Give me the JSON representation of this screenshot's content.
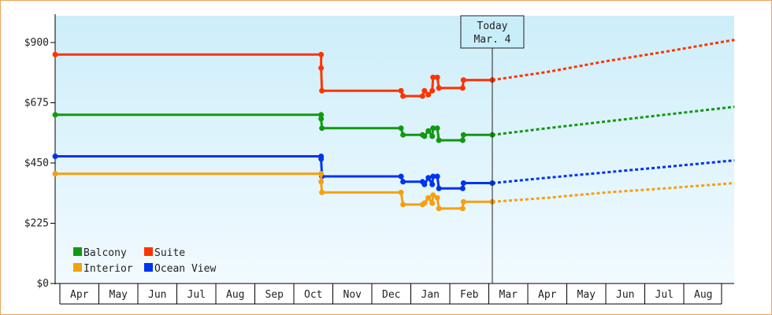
{
  "chart_data": {
    "type": "line",
    "ylim": [
      0,
      1000
    ],
    "y_ticks": [
      {
        "value": 0,
        "label": "$0"
      },
      {
        "value": 225,
        "label": "$225"
      },
      {
        "value": 450,
        "label": "$450"
      },
      {
        "value": 675,
        "label": "$675"
      },
      {
        "value": 900,
        "label": "$900"
      }
    ],
    "months": [
      "Apr",
      "May",
      "Jun",
      "Jul",
      "Aug",
      "Sep",
      "Oct",
      "Nov",
      "Dec",
      "Jan",
      "Feb",
      "Mar",
      "Apr",
      "May",
      "Jun",
      "Jul",
      "Aug"
    ],
    "today_label_line1": "Today",
    "today_label_line2": "Mar. 4",
    "today_x": 11.09,
    "x_max": 17.3,
    "legend_position": "bottom-left",
    "series": [
      {
        "name": "Suite",
        "color": "#ff3300",
        "history": [
          [
            -0.12,
            855
          ],
          [
            6.7,
            855
          ],
          [
            6.7,
            805
          ],
          [
            6.72,
            720
          ],
          [
            8.75,
            720
          ],
          [
            8.8,
            700
          ],
          [
            9.3,
            700
          ],
          [
            9.35,
            720
          ],
          [
            9.45,
            705
          ],
          [
            9.55,
            720
          ],
          [
            9.57,
            770
          ],
          [
            9.68,
            770
          ],
          [
            9.72,
            730
          ],
          [
            10.33,
            730
          ],
          [
            10.35,
            760
          ],
          [
            11.09,
            760
          ]
        ],
        "forecast": [
          [
            11.09,
            760
          ],
          [
            12.5,
            790
          ],
          [
            14,
            830
          ],
          [
            15.5,
            865
          ],
          [
            17.3,
            910
          ]
        ]
      },
      {
        "name": "Balcony",
        "color": "#119911",
        "history": [
          [
            -0.12,
            630
          ],
          [
            6.7,
            630
          ],
          [
            6.7,
            615
          ],
          [
            6.72,
            580
          ],
          [
            8.75,
            580
          ],
          [
            8.8,
            555
          ],
          [
            9.3,
            555
          ],
          [
            9.35,
            550
          ],
          [
            9.45,
            570
          ],
          [
            9.55,
            550
          ],
          [
            9.57,
            580
          ],
          [
            9.68,
            580
          ],
          [
            9.72,
            535
          ],
          [
            10.33,
            535
          ],
          [
            10.35,
            555
          ],
          [
            11.09,
            555
          ]
        ],
        "forecast": [
          [
            11.09,
            555
          ],
          [
            12.5,
            580
          ],
          [
            14,
            605
          ],
          [
            15.5,
            630
          ],
          [
            17.3,
            660
          ]
        ]
      },
      {
        "name": "Ocean View",
        "color": "#0033ee",
        "history": [
          [
            -0.12,
            475
          ],
          [
            6.7,
            475
          ],
          [
            6.7,
            465
          ],
          [
            6.72,
            400
          ],
          [
            8.75,
            400
          ],
          [
            8.8,
            380
          ],
          [
            9.3,
            380
          ],
          [
            9.35,
            370
          ],
          [
            9.45,
            395
          ],
          [
            9.55,
            370
          ],
          [
            9.57,
            400
          ],
          [
            9.68,
            400
          ],
          [
            9.72,
            355
          ],
          [
            10.33,
            355
          ],
          [
            10.35,
            375
          ],
          [
            11.09,
            375
          ]
        ],
        "forecast": [
          [
            11.09,
            375
          ],
          [
            12.5,
            395
          ],
          [
            14,
            415
          ],
          [
            15.5,
            435
          ],
          [
            17.3,
            460
          ]
        ]
      },
      {
        "name": "Interior",
        "color": "#f5a011",
        "history": [
          [
            -0.12,
            410
          ],
          [
            6.7,
            410
          ],
          [
            6.7,
            380
          ],
          [
            6.72,
            340
          ],
          [
            8.75,
            340
          ],
          [
            8.8,
            295
          ],
          [
            9.3,
            295
          ],
          [
            9.35,
            300
          ],
          [
            9.45,
            320
          ],
          [
            9.55,
            300
          ],
          [
            9.57,
            330
          ],
          [
            9.68,
            320
          ],
          [
            9.72,
            280
          ],
          [
            10.33,
            280
          ],
          [
            10.35,
            305
          ],
          [
            11.09,
            305
          ]
        ],
        "forecast": [
          [
            11.09,
            305
          ],
          [
            12.5,
            320
          ],
          [
            14,
            340
          ],
          [
            15.5,
            355
          ],
          [
            17.3,
            375
          ]
        ]
      }
    ],
    "legend": [
      {
        "name": "Balcony",
        "color": "#119911"
      },
      {
        "name": "Suite",
        "color": "#ff3300"
      },
      {
        "name": "Interior",
        "color": "#f5a011"
      },
      {
        "name": "Ocean View",
        "color": "#0033ee"
      }
    ]
  }
}
